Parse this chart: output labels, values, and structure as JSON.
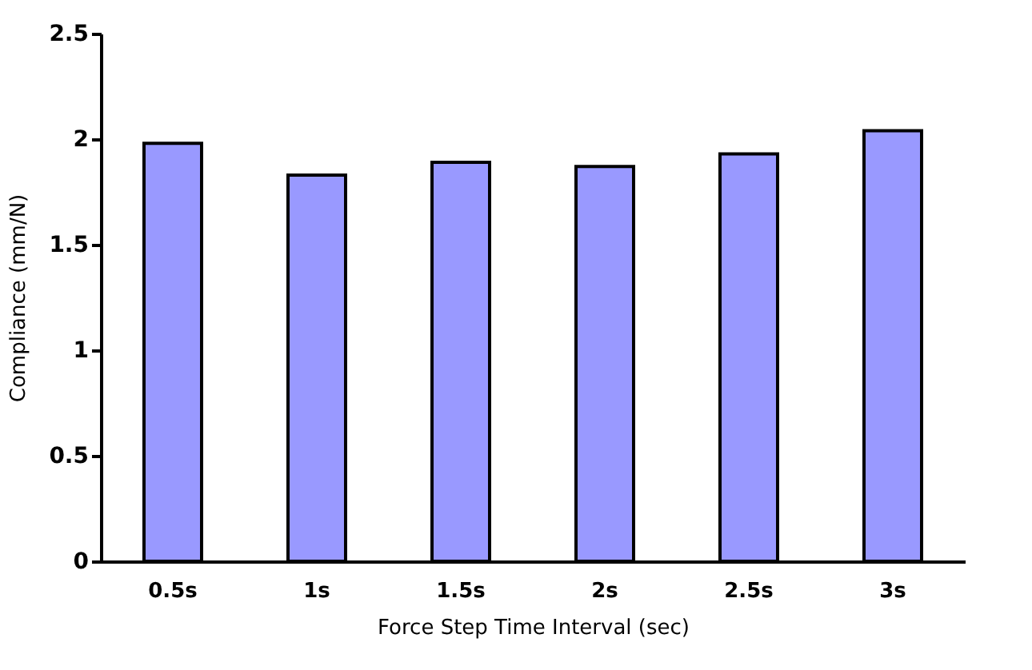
{
  "chart_data": {
    "type": "bar",
    "xlabel": "Force Step Time Interval (sec)",
    "ylabel": "Compliance (mm/N)",
    "categories": [
      "0.5s",
      "1s",
      "1.5s",
      "2s",
      "2.5s",
      "3s"
    ],
    "values": [
      1.98,
      1.83,
      1.89,
      1.87,
      1.93,
      2.04
    ],
    "color": "#9999ff",
    "ylim": [
      0,
      2.5
    ],
    "yticks": [
      0,
      0.5,
      1,
      1.5,
      2,
      2.5
    ]
  }
}
